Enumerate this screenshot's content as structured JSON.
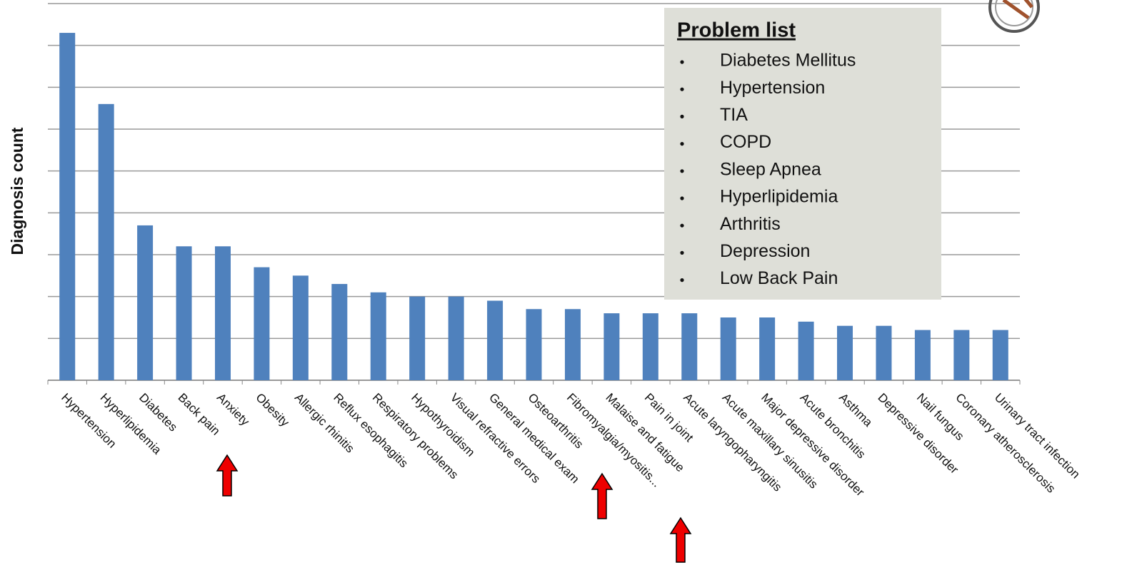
{
  "chart_data": {
    "type": "bar",
    "y_label": "Diagnosis count",
    "categories": [
      "Hypertension",
      "Hyperlipidemia",
      "Diabetes",
      "Back pain",
      "Anxiety",
      "Obesity",
      "Allergic rhinitis",
      "Reflux esophagitis",
      "Respiratory problems",
      "Hypothyroidism",
      "Visual refractive errors",
      "General medical exam",
      "Osteoarthritis",
      "Fibromyalgia/myositis...",
      "Malaise and fatigue",
      "Pain in joint",
      "Acute laryngopharyngitis",
      "Acute maxillary sinusitis",
      "Major depressive disorder",
      "Acute bronchitis",
      "Asthma",
      "Depressive disorder",
      "Nail fungus",
      "Coronary atherosclerosis",
      "Urinary tract infection"
    ],
    "values": [
      8.3,
      6.6,
      3.7,
      3.2,
      3.2,
      2.7,
      2.5,
      2.3,
      2.1,
      2.0,
      2.0,
      1.9,
      1.7,
      1.7,
      1.6,
      1.6,
      1.6,
      1.5,
      1.5,
      1.4,
      1.3,
      1.3,
      1.2,
      1.2,
      1.2
    ],
    "color": "#4f81bd",
    "ylim": [
      0,
      9
    ],
    "yticks": [
      0,
      1,
      2,
      3,
      4,
      5,
      6,
      7,
      8,
      9
    ],
    "grid": true,
    "annotation": {
      "title": "Problem list",
      "items": [
        "Diabetes Mellitus",
        "Hypertension",
        "TIA",
        "COPD",
        "Sleep Apnea",
        "Hyperlipidemia",
        "Arthritis",
        "Depression",
        "Low Back Pain"
      ]
    }
  }
}
